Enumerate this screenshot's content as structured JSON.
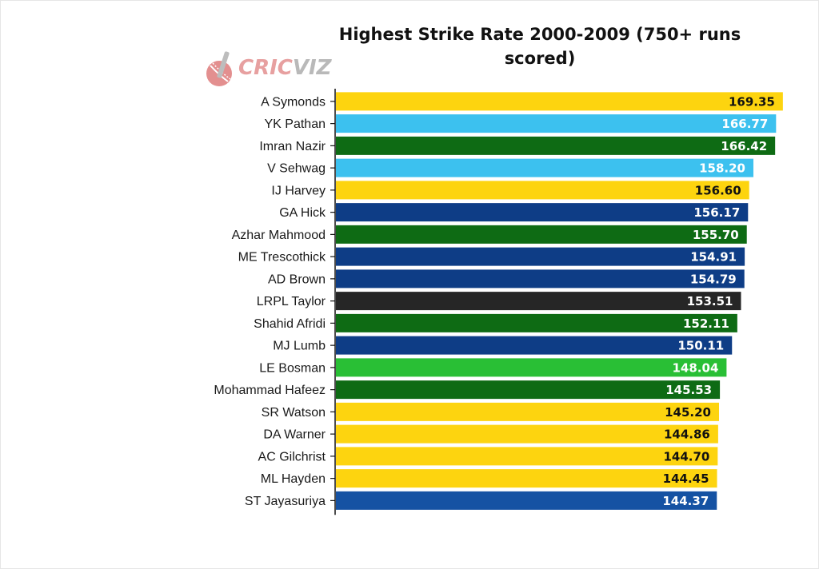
{
  "chart_data": {
    "type": "bar",
    "orientation": "horizontal",
    "title": "Highest Strike Rate 2000-2009 (750+ runs scored)",
    "xlabel": "",
    "ylabel": "",
    "xlim": [
      0,
      170
    ],
    "grid": false,
    "categories": [
      "A Symonds",
      "YK Pathan",
      "Imran Nazir",
      "V Sehwag",
      "IJ Harvey",
      "GA Hick",
      "Azhar Mahmood",
      "ME Trescothick",
      "AD Brown",
      "LRPL Taylor",
      "Shahid Afridi",
      "MJ Lumb",
      "LE Bosman",
      "Mohammad Hafeez",
      "SR Watson",
      "DA Warner",
      "AC Gilchrist",
      "ML Hayden",
      "ST Jayasuriya"
    ],
    "values": [
      169.35,
      166.77,
      166.42,
      158.2,
      156.6,
      156.17,
      155.7,
      154.91,
      154.79,
      153.51,
      152.11,
      150.11,
      148.04,
      145.53,
      145.2,
      144.86,
      144.7,
      144.45,
      144.37
    ],
    "value_labels": [
      "169.35",
      "166.77",
      "166.42",
      "158.20",
      "156.60",
      "156.17",
      "155.70",
      "154.91",
      "154.79",
      "153.51",
      "152.11",
      "150.11",
      "148.04",
      "145.53",
      "145.20",
      "144.86",
      "144.70",
      "144.45",
      "144.37"
    ],
    "bar_colors": [
      "#fdd40f",
      "#3cc1ef",
      "#0e6b14",
      "#3cc1ef",
      "#fdd40f",
      "#0e3d86",
      "#0e6b14",
      "#0e3d86",
      "#0e3d86",
      "#262626",
      "#0e6b14",
      "#0e3d86",
      "#29bf35",
      "#0e6b14",
      "#fdd40f",
      "#fdd40f",
      "#fdd40f",
      "#fdd40f",
      "#1552a3"
    ],
    "label_colors": [
      "#111111",
      "#ffffff",
      "#ffffff",
      "#ffffff",
      "#111111",
      "#ffffff",
      "#ffffff",
      "#ffffff",
      "#ffffff",
      "#ffffff",
      "#ffffff",
      "#ffffff",
      "#ffffff",
      "#ffffff",
      "#111111",
      "#111111",
      "#111111",
      "#111111",
      "#ffffff"
    ]
  },
  "logo": {
    "name": "cricviz-logo",
    "text_a": "CRIC",
    "text_b": "VIZ"
  }
}
